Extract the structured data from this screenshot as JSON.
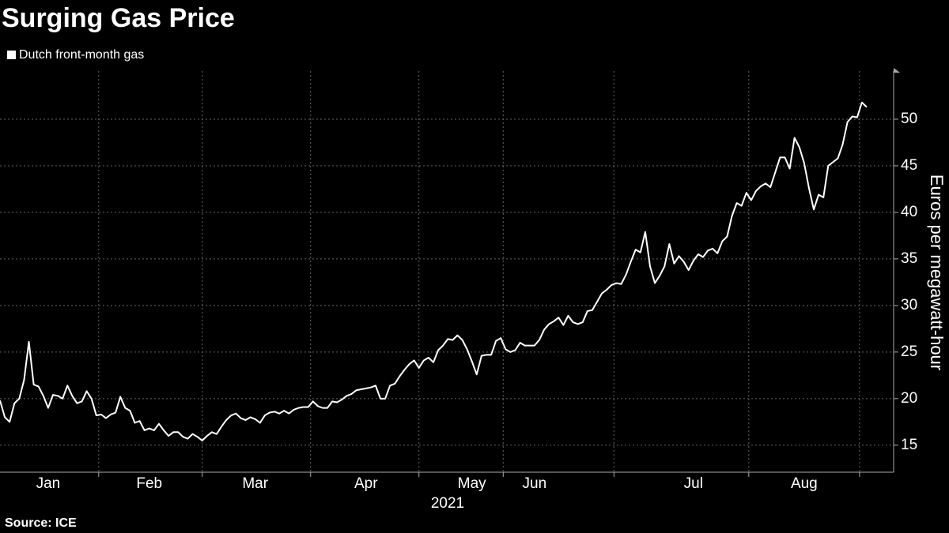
{
  "chart_data": {
    "type": "line",
    "title": "Surging Gas Price",
    "xlabel": "2021",
    "ylabel": "Euros per megawatt-hour",
    "source": "Source: ICE",
    "categories": [
      null,
      null,
      null,
      null,
      null,
      null,
      null,
      null,
      null,
      null,
      "Jan",
      null,
      null,
      null,
      null,
      null,
      null,
      null,
      null,
      null,
      null,
      null,
      null,
      null,
      null,
      null,
      null,
      null,
      null,
      null,
      null,
      "Feb",
      null,
      null,
      null,
      null,
      null,
      null,
      null,
      null,
      null,
      null,
      null,
      null,
      null,
      null,
      null,
      null,
      null,
      null,
      null,
      null,
      null,
      "Mar",
      null,
      null,
      null,
      null,
      null,
      null,
      null,
      null,
      null,
      null,
      null,
      null,
      null,
      null,
      null,
      null,
      null,
      null,
      null,
      null,
      null,
      null,
      "Apr",
      null,
      null,
      null,
      null,
      null,
      null,
      null,
      null,
      null,
      null,
      null,
      null,
      null,
      null,
      null,
      null,
      null,
      null,
      null,
      null,
      null,
      "May",
      null,
      null,
      null,
      null,
      null,
      null,
      null,
      null,
      null,
      null,
      null,
      null,
      "Jun",
      null,
      null,
      null,
      null,
      null,
      null,
      null,
      null,
      null,
      null,
      null,
      null,
      null,
      null,
      null,
      null,
      null,
      null,
      null,
      null,
      null,
      null,
      null,
      null,
      null,
      null,
      null,
      null,
      null,
      null,
      null,
      null,
      "Jul",
      null,
      null,
      null,
      null,
      null,
      null,
      null,
      null,
      null,
      null,
      null,
      null,
      null,
      null,
      null,
      null,
      null,
      null,
      null,
      null,
      null,
      null,
      "Aug",
      null,
      null,
      null,
      null,
      null,
      null,
      null,
      null,
      null,
      null,
      null,
      null,
      null
    ],
    "series": [
      {
        "name": "Dutch front-month gas",
        "color": "#ffffff",
        "values": [
          19.8,
          18,
          17.5,
          19.5,
          20,
          22,
          26.1,
          21.5,
          21.3,
          20.3,
          19,
          20.4,
          20.3,
          20,
          21.4,
          20.3,
          19.5,
          19.7,
          20.8,
          20,
          18.2,
          18.3,
          17.9,
          18.3,
          18.5,
          20.2,
          19,
          18.7,
          17.4,
          17.6,
          16.6,
          16.8,
          16.6,
          17.3,
          16.6,
          16,
          16.4,
          16.4,
          15.9,
          15.7,
          16.2,
          15.9,
          15.5,
          16,
          16.4,
          16.2,
          17,
          17.7,
          18.2,
          18.4,
          17.9,
          17.7,
          18,
          17.8,
          17.4,
          18.2,
          18.5,
          18.6,
          18.4,
          18.7,
          18.4,
          18.8,
          19,
          19.1,
          19.1,
          19.7,
          19.2,
          19,
          19,
          19.7,
          19.6,
          19.9,
          20.3,
          20.5,
          20.9,
          21,
          21.1,
          21.2,
          21.4,
          20,
          20,
          21.4,
          21.6,
          22.4,
          23.1,
          23.7,
          24.1,
          23.3,
          24.1,
          24.4,
          23.9,
          25.2,
          25.7,
          26.4,
          26.3,
          26.8,
          26.3,
          25.3,
          24,
          22.6,
          24.6,
          24.7,
          24.7,
          26.2,
          26.5,
          25.3,
          25,
          25.2,
          26,
          25.7,
          25.7,
          25.7,
          26.3,
          27.4,
          28,
          28.3,
          28.7,
          27.9,
          28.9,
          28.2,
          28,
          28.2,
          29.4,
          29.5,
          30.4,
          31.3,
          31.7,
          32.2,
          32.4,
          32.3,
          33.3,
          34.7,
          36,
          35.7,
          37.9,
          34.2,
          32.4,
          33.2,
          34.2,
          36.6,
          34.5,
          35.3,
          34.7,
          33.8,
          34.8,
          35.5,
          35.2,
          35.9,
          36.1,
          35.6,
          36.9,
          37.4,
          39.6,
          41,
          40.7,
          42.1,
          41.3,
          42.3,
          42.8,
          43.1,
          42.7,
          44.3,
          45.9,
          45.9,
          44.7,
          48,
          47,
          45.3,
          42.6,
          40.3,
          41.9,
          41.6,
          45,
          45.4,
          45.8,
          47.3,
          49.7,
          50.3,
          50.2,
          51.8,
          51.3
        ]
      }
    ],
    "ylim": [
      12.1,
      55.17
    ],
    "yticks": [
      15,
      20,
      25,
      30,
      35,
      40,
      45,
      50
    ],
    "grid": true
  }
}
